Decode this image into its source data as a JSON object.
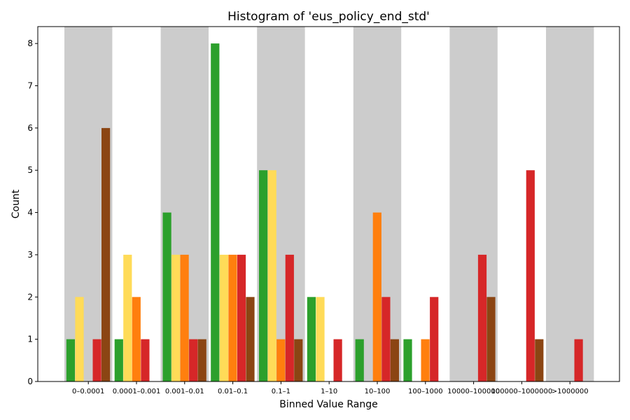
{
  "chart_data": {
    "type": "bar",
    "title": "Histogram of 'eus_policy_end_std'",
    "xlabel": "Binned Value Range",
    "ylabel": "Count",
    "ylim": [
      0,
      8.4
    ],
    "yticks": [
      0,
      1,
      2,
      3,
      4,
      5,
      6,
      7,
      8
    ],
    "categories": [
      "0–0.0001",
      "0.0001–0.001",
      "0.001–0.01",
      "0.01–0.1",
      "0.1–1",
      "1–10",
      "10–100",
      "100–1000",
      "10000–100000",
      "100000–1000000",
      ">1000000"
    ],
    "shaded_categories": [
      0,
      2,
      4,
      6,
      8,
      10
    ],
    "shade_color": "#cccccc",
    "series": [
      {
        "color": "#2ca02c",
        "values": [
          1,
          1,
          4,
          8,
          5,
          2,
          1,
          1,
          0,
          0,
          0
        ]
      },
      {
        "color": "#ffdb58",
        "values": [
          2,
          3,
          3,
          3,
          5,
          2,
          0,
          0,
          0,
          0,
          0
        ]
      },
      {
        "color": "#ff7f0e",
        "values": [
          0,
          2,
          3,
          3,
          1,
          0,
          4,
          1,
          0,
          0,
          0
        ]
      },
      {
        "color": "#d62728",
        "values": [
          1,
          1,
          1,
          3,
          3,
          1,
          2,
          2,
          3,
          5,
          1
        ]
      },
      {
        "color": "#8b4513",
        "values": [
          6,
          0,
          1,
          2,
          1,
          0,
          1,
          0,
          2,
          1,
          0
        ]
      }
    ],
    "legend": "none",
    "grid": false
  }
}
